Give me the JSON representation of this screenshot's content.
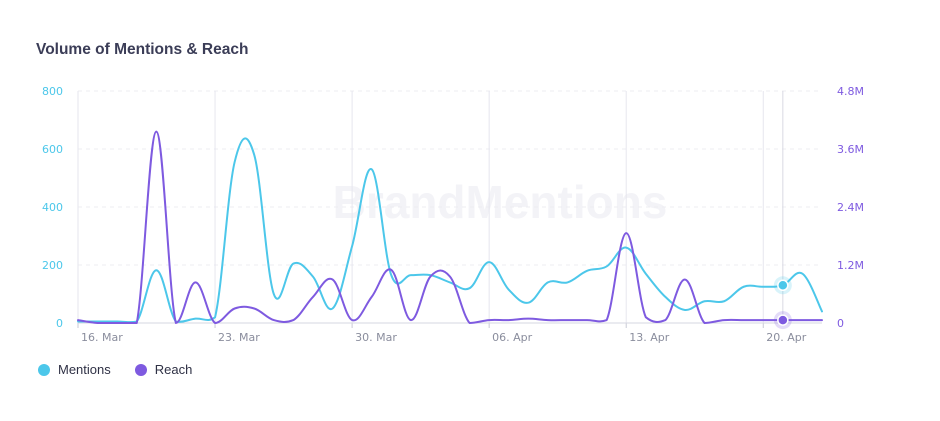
{
  "chart_data": {
    "type": "line",
    "title": "Volume of Mentions & Reach",
    "watermark": "BrandMentions",
    "x_ticks": [
      "16. Mar",
      "23. Mar",
      "30. Mar",
      "06. Apr",
      "13. Apr",
      "20. Apr"
    ],
    "y_left": {
      "ticks": [
        "0",
        "200",
        "400",
        "600",
        "800"
      ],
      "range": [
        0,
        800
      ]
    },
    "y_right": {
      "ticks": [
        "0",
        "1.2M",
        "2.4M",
        "3.6M",
        "4.8M"
      ],
      "range": [
        0,
        4800000
      ]
    },
    "x": [
      "2020-03-16",
      "2020-03-17",
      "2020-03-18",
      "2020-03-19",
      "2020-03-20",
      "2020-03-21",
      "2020-03-22",
      "2020-03-23",
      "2020-03-24",
      "2020-03-25",
      "2020-03-26",
      "2020-03-27",
      "2020-03-28",
      "2020-03-29",
      "2020-03-30",
      "2020-03-31",
      "2020-04-01",
      "2020-04-02",
      "2020-04-03",
      "2020-04-04",
      "2020-04-05",
      "2020-04-06",
      "2020-04-07",
      "2020-04-08",
      "2020-04-09",
      "2020-04-10",
      "2020-04-11",
      "2020-04-12",
      "2020-04-13",
      "2020-04-14",
      "2020-04-15",
      "2020-04-16",
      "2020-04-17",
      "2020-04-18",
      "2020-04-19",
      "2020-04-20",
      "2020-04-21",
      "2020-04-22",
      "2020-04-23"
    ],
    "series": [
      {
        "name": "Mentions",
        "color": "#4cc7ea",
        "axis": "left",
        "values": [
          5,
          5,
          5,
          5,
          182,
          5,
          15,
          20,
          555,
          580,
          100,
          205,
          160,
          50,
          265,
          530,
          165,
          165,
          165,
          140,
          120,
          210,
          115,
          70,
          140,
          140,
          180,
          195,
          260,
          170,
          90,
          45,
          75,
          75,
          125,
          125,
          130,
          170,
          40
        ]
      },
      {
        "name": "Reach",
        "color": "#7e5ae0",
        "axis": "right",
        "values": [
          60000,
          0,
          0,
          0,
          3960000,
          0,
          840000,
          0,
          300000,
          300000,
          60000,
          60000,
          540000,
          900000,
          60000,
          540000,
          1100000,
          60000,
          960000,
          960000,
          0,
          60000,
          60000,
          90000,
          60000,
          60000,
          60000,
          60000,
          1860000,
          120000,
          60000,
          900000,
          0,
          60000,
          60000,
          60000,
          60000,
          60000,
          60000
        ]
      }
    ],
    "highlight_index": 36,
    "legend_position": "bottom-left",
    "grid": true
  }
}
